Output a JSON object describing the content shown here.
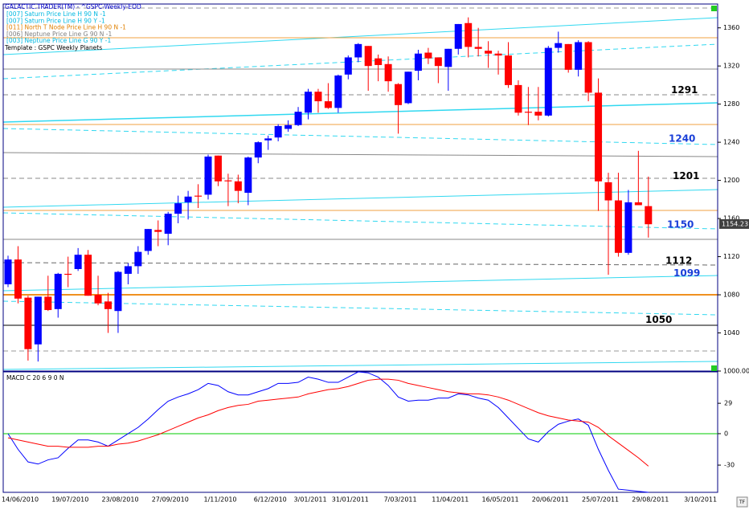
{
  "chart_data": [
    {
      "type": "candlestick",
      "title": "GALACTIC.TRADER(TM) - ^GSPC-Weekly-EOD",
      "legend": [
        {
          "text": "[007] Saturn Price Line H 90 N -1",
          "color": "#00b8e0"
        },
        {
          "text": "[007] Saturn Price Line H 90 Y -1",
          "color": "#00b8e0"
        },
        {
          "text": "[011] North T Node Price Line H 90 N -1",
          "color": "#e08000"
        },
        {
          "text": "[006] Neptune Price Line G 90 N -1",
          "color": "#808080"
        },
        {
          "text": "[003] Neptune Price Line G 90 Y -1",
          "color": "#00b8e0"
        }
      ],
      "template": "Template : GSPC Weekly Planets",
      "xticks": [
        "14/06/2010",
        "19/07/2010",
        "23/08/2010",
        "27/09/2010",
        "1/11/2010",
        "6/12/2010",
        "3/01/2011",
        "31/01/2011",
        "7/03/2011",
        "11/04/2011",
        "16/05/2011",
        "20/06/2011",
        "25/07/2011",
        "29/08/2011",
        "3/10/2011"
      ],
      "open": [
        1091,
        1117,
        1077,
        1028,
        1078,
        1065,
        1102,
        1107,
        1122,
        1080,
        1073,
        1063,
        1102,
        1110,
        1126,
        1148,
        1144,
        1165,
        1177,
        1184,
        1185,
        1226,
        1200,
        1199,
        1187,
        1224,
        1242,
        1245,
        1254,
        1258,
        1271,
        1293,
        1283,
        1276,
        1311,
        1329,
        1341,
        1328,
        1322,
        1301,
        1281,
        1315,
        1334,
        1329,
        1319,
        1338,
        1365,
        1340,
        1336,
        1333,
        1331,
        1300,
        1272,
        1272,
        1268,
        1339,
        1343,
        1316,
        1345,
        1292,
        1198,
        1179,
        1124,
        1177,
        1173
      ],
      "high": [
        1121,
        1131,
        1079,
        1078,
        1100,
        1103,
        1120,
        1129,
        1127,
        1100,
        1082,
        1105,
        1113,
        1131,
        1149,
        1158,
        1167,
        1184,
        1189,
        1196,
        1227,
        1226,
        1207,
        1206,
        1225,
        1241,
        1247,
        1259,
        1263,
        1277,
        1296,
        1296,
        1302,
        1311,
        1331,
        1344,
        1341,
        1332,
        1330,
        1302,
        1314,
        1337,
        1339,
        1329,
        1338,
        1364,
        1371,
        1360,
        1346,
        1336,
        1345,
        1305,
        1298,
        1298,
        1341,
        1356,
        1343,
        1347,
        1346,
        1307,
        1208,
        1208,
        1190,
        1231,
        1204
      ],
      "low": [
        1088,
        1071,
        1011,
        1010,
        1063,
        1056,
        1088,
        1105,
        1079,
        1069,
        1040,
        1040,
        1091,
        1102,
        1122,
        1131,
        1132,
        1155,
        1159,
        1171,
        1180,
        1194,
        1173,
        1176,
        1174,
        1218,
        1232,
        1241,
        1251,
        1257,
        1264,
        1271,
        1275,
        1271,
        1306,
        1324,
        1294,
        1304,
        1293,
        1249,
        1280,
        1305,
        1322,
        1302,
        1294,
        1332,
        1329,
        1330,
        1318,
        1311,
        1297,
        1268,
        1258,
        1263,
        1267,
        1334,
        1313,
        1309,
        1283,
        1168,
        1101,
        1120,
        1122,
        1176,
        1140
      ],
      "close": [
        1117,
        1076,
        1023,
        1078,
        1064,
        1102,
        1101,
        1122,
        1079,
        1071,
        1065,
        1104,
        1110,
        1125,
        1149,
        1146,
        1165,
        1176,
        1183,
        1183,
        1225,
        1199,
        1199,
        1189,
        1224,
        1240,
        1244,
        1257,
        1258,
        1272,
        1293,
        1283,
        1276,
        1310,
        1329,
        1343,
        1320,
        1321,
        1304,
        1279,
        1314,
        1333,
        1328,
        1320,
        1338,
        1364,
        1340,
        1338,
        1333,
        1331,
        1300,
        1271,
        1271,
        1268,
        1339,
        1344,
        1316,
        1345,
        1292,
        1199,
        1179,
        1124,
        1177,
        1174,
        1154
      ],
      "up_color": "#0000ff",
      "down_color": "#ff0000",
      "ylim": [
        1000,
        1385
      ],
      "yticks": [
        1360,
        1320,
        1280,
        1240,
        1200,
        1160,
        1120,
        1080,
        1040,
        {
          "value": 1000,
          "label": "1000.00"
        }
      ],
      "levels": [
        1291,
        1240,
        1201,
        1150,
        1112,
        1099,
        1050
      ],
      "level_colors": [
        "#000000",
        "#1a3fd8",
        "#000000",
        "#1a3fd8",
        "#000000",
        "#1a3fd8",
        "#000000"
      ],
      "last_price": {
        "value": 1154.23,
        "label": "1154.23"
      }
    },
    {
      "type": "line",
      "title": "MACD C 20 6 9 0 N",
      "series": [
        {
          "color": "#0000ff",
          "values": [
            0,
            -15,
            -27,
            -29,
            -25,
            -23,
            -14,
            -6,
            -6,
            -8,
            -12,
            -6,
            0,
            6,
            14,
            23,
            31,
            35,
            38,
            42,
            48,
            46,
            40,
            37,
            37,
            40,
            43,
            48,
            48,
            49,
            54,
            52,
            49,
            49,
            54,
            59,
            58,
            54,
            46,
            35,
            31,
            32,
            32,
            34,
            34,
            38,
            37,
            34,
            32,
            25,
            15,
            5,
            -5,
            -8,
            2,
            9,
            12,
            14,
            8,
            -15,
            -35,
            -53,
            -54,
            -55,
            -56
          ]
        },
        {
          "color": "#ff0000",
          "values": [
            -4,
            -6,
            -8,
            -10,
            -12,
            -12,
            -13,
            -13,
            -13,
            -12,
            -12,
            -10,
            -9,
            -7,
            -4,
            -1,
            3,
            7,
            11,
            15,
            18,
            22,
            25,
            27,
            28,
            31,
            32,
            33,
            34,
            35,
            38,
            40,
            42,
            43,
            45,
            48,
            51,
            52,
            52,
            51,
            48,
            46,
            44,
            42,
            40,
            39,
            38,
            38,
            37,
            35,
            32,
            28,
            24,
            20,
            17,
            15,
            13,
            12,
            11,
            6,
            -2,
            -9,
            -16,
            -23,
            -31
          ]
        }
      ],
      "ylim": [
        -56,
        59
      ],
      "yticks": [
        29,
        0,
        -30
      ],
      "zero_color": "#00cc00"
    }
  ]
}
